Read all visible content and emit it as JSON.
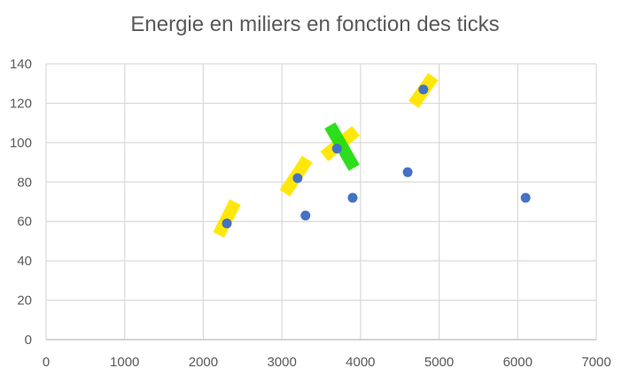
{
  "chart_data": {
    "type": "scatter",
    "title": "Energie en miliers en fonction des ticks",
    "xlabel": "",
    "ylabel": "",
    "xlim": [
      0,
      7000
    ],
    "ylim": [
      0,
      140
    ],
    "xticks": [
      0,
      1000,
      2000,
      3000,
      4000,
      5000,
      6000,
      7000
    ],
    "yticks": [
      0,
      20,
      40,
      60,
      80,
      100,
      120,
      140
    ],
    "grid": true,
    "legend": "none",
    "series": [
      {
        "marker_color": "#4472c4",
        "points": [
          {
            "x": 2300,
            "y": 59
          },
          {
            "x": 3200,
            "y": 82
          },
          {
            "x": 3300,
            "y": 63
          },
          {
            "x": 3700,
            "y": 97
          },
          {
            "x": 3900,
            "y": 72
          },
          {
            "x": 4600,
            "y": 85
          },
          {
            "x": 4800,
            "y": 127
          },
          {
            "x": 6100,
            "y": 72
          }
        ]
      }
    ],
    "annotations": [
      {
        "kind": "highlight-stroke",
        "color": "#ffe600",
        "from": {
          "x": 2230,
          "y": 56
        },
        "to": {
          "x": 2370,
          "y": 67
        }
      },
      {
        "kind": "highlight-stroke",
        "color": "#ffe600",
        "from": {
          "x": 3080,
          "y": 77
        },
        "to": {
          "x": 3280,
          "y": 89
        }
      },
      {
        "kind": "highlight-stroke",
        "color": "#ffe600",
        "from": {
          "x": 3600,
          "y": 95
        },
        "to": {
          "x": 3880,
          "y": 104
        }
      },
      {
        "kind": "highlight-stroke",
        "color": "#ffe600",
        "from": {
          "x": 4720,
          "y": 122
        },
        "to": {
          "x": 4880,
          "y": 131
        }
      },
      {
        "kind": "highlight-stroke",
        "color": "#22dd11",
        "from": {
          "x": 3650,
          "y": 106
        },
        "to": {
          "x": 3880,
          "y": 90
        }
      }
    ]
  }
}
